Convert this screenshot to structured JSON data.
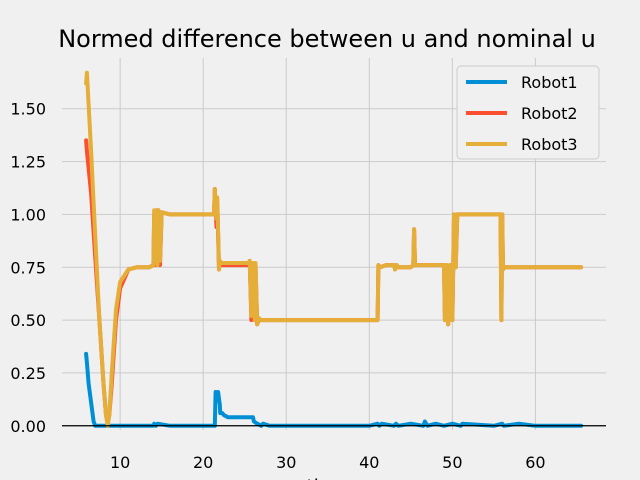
{
  "chart_data": {
    "type": "line",
    "title": "Normed difference between u and nominal u",
    "xlabel": "time",
    "ylabel": "",
    "xlim": [
      3.0,
      68.5
    ],
    "ylim": [
      -0.02,
      1.74
    ],
    "xticks": [
      10,
      20,
      30,
      40,
      50,
      60
    ],
    "yticks": [
      0.0,
      0.25,
      0.5,
      0.75,
      1.0,
      1.25,
      1.5
    ],
    "ytick_labels": [
      "0.00",
      "0.25",
      "0.50",
      "0.75",
      "1.00",
      "1.25",
      "1.50"
    ],
    "grid": true,
    "legend_position": "top-right",
    "series": [
      {
        "name": "Robot1",
        "color": "#008fd5",
        "x": [
          5.9,
          6.0,
          6.2,
          6.8,
          7.0,
          8.0,
          10.0,
          12.0,
          14.0,
          14.1,
          14.3,
          14.5,
          16.0,
          18.0,
          21.4,
          21.5,
          21.6,
          21.8,
          22.0,
          22.05,
          22.3,
          22.5,
          23.0,
          24.0,
          25.0,
          25.5,
          26.0,
          26.1,
          26.5,
          27.0,
          27.2,
          28.0,
          30.0,
          35.0,
          40.0,
          41.0,
          41.2,
          41.5,
          43.0,
          43.2,
          43.5,
          45.0,
          46.5,
          46.7,
          47.0,
          48.0,
          49.0,
          50.0,
          51.0,
          51.2,
          55.0,
          56.0,
          56.2,
          58.0,
          60.0,
          65.5
        ],
        "y": [
          0.34,
          0.3,
          0.2,
          0.02,
          0.0,
          0.0,
          0.0,
          0.0,
          0.0,
          0.01,
          0.0,
          0.01,
          0.0,
          0.0,
          0.0,
          0.16,
          0.14,
          0.16,
          0.1,
          0.06,
          0.06,
          0.05,
          0.04,
          0.04,
          0.04,
          0.04,
          0.04,
          0.02,
          0.01,
          0.0,
          0.01,
          0.0,
          0.0,
          0.0,
          0.0,
          0.01,
          0.0,
          0.01,
          0.0,
          0.01,
          0.0,
          0.01,
          0.0,
          0.02,
          0.0,
          0.01,
          0.0,
          0.01,
          0.0,
          0.01,
          0.0,
          0.01,
          0.0,
          0.01,
          0.0,
          0.0
        ]
      },
      {
        "name": "Robot2",
        "color": "#fc4f30",
        "x": [
          5.9,
          6.0,
          6.5,
          7.0,
          7.5,
          8.0,
          8.3,
          8.5,
          8.7,
          9.0,
          9.5,
          10.0,
          11.0,
          12.0,
          13.5,
          14.0,
          14.1,
          14.2,
          14.4,
          14.5,
          14.6,
          14.8,
          15.0,
          16.0,
          18.0,
          20.0,
          21.3,
          21.4,
          21.6,
          21.7,
          21.9,
          22.0,
          22.2,
          23.0,
          25.5,
          25.6,
          25.8,
          26.0,
          26.2,
          26.3,
          26.5,
          26.7,
          27.0,
          28.0,
          30.0,
          35.0,
          40.5,
          41.0,
          41.1,
          41.3,
          42.0,
          43.0,
          43.1,
          43.3,
          43.5,
          45.0,
          45.3,
          45.4,
          45.5,
          46.0,
          48.0,
          49.0,
          49.1,
          49.3,
          49.5,
          49.7,
          50.0,
          50.2,
          50.4,
          50.6,
          51.0,
          52.0,
          55.0,
          55.8,
          55.9,
          56.0,
          56.1,
          56.3,
          56.5,
          58.0,
          60.0,
          65.5
        ],
        "y": [
          1.35,
          1.3,
          1.1,
          0.8,
          0.5,
          0.2,
          0.05,
          0.02,
          0.05,
          0.2,
          0.5,
          0.65,
          0.74,
          0.75,
          0.75,
          0.76,
          1.0,
          0.76,
          1.02,
          0.78,
          1.02,
          0.76,
          1.01,
          1.0,
          1.0,
          1.0,
          1.0,
          1.12,
          0.94,
          1.05,
          0.74,
          0.78,
          0.76,
          0.76,
          0.76,
          0.78,
          0.5,
          0.76,
          0.5,
          0.76,
          0.48,
          0.5,
          0.5,
          0.5,
          0.5,
          0.5,
          0.5,
          0.5,
          0.76,
          0.75,
          0.76,
          0.76,
          0.74,
          0.76,
          0.75,
          0.75,
          0.76,
          0.93,
          0.76,
          0.76,
          0.76,
          0.76,
          0.5,
          0.76,
          0.48,
          0.76,
          0.5,
          1.0,
          0.75,
          1.0,
          1.0,
          1.0,
          1.0,
          1.0,
          0.5,
          1.0,
          0.74,
          0.75,
          0.75,
          0.75,
          0.75,
          0.75
        ]
      },
      {
        "name": "Robot3",
        "color": "#e5ae38",
        "x": [
          5.9,
          6.0,
          6.1,
          6.5,
          7.0,
          7.5,
          8.0,
          8.3,
          8.5,
          8.7,
          9.0,
          9.5,
          10.0,
          11.0,
          12.0,
          13.5,
          14.0,
          14.1,
          14.2,
          14.4,
          14.5,
          14.6,
          14.8,
          15.0,
          16.0,
          18.0,
          20.0,
          21.3,
          21.4,
          21.6,
          21.7,
          21.9,
          22.0,
          22.2,
          23.0,
          25.5,
          25.6,
          25.8,
          26.0,
          26.2,
          26.3,
          26.5,
          26.7,
          27.0,
          28.0,
          30.0,
          35.0,
          40.5,
          41.0,
          41.1,
          41.3,
          42.0,
          43.0,
          43.1,
          43.3,
          43.5,
          45.0,
          45.3,
          45.4,
          45.5,
          46.0,
          48.0,
          49.0,
          49.1,
          49.3,
          49.5,
          49.7,
          50.0,
          50.2,
          50.4,
          50.6,
          51.0,
          52.0,
          55.0,
          55.8,
          55.9,
          56.0,
          56.1,
          56.3,
          56.5,
          58.0,
          60.0,
          65.5
        ],
        "y": [
          1.62,
          1.67,
          1.6,
          1.3,
          0.9,
          0.5,
          0.2,
          0.05,
          0.0,
          0.05,
          0.25,
          0.55,
          0.68,
          0.74,
          0.75,
          0.75,
          0.76,
          1.02,
          0.78,
          1.02,
          0.76,
          1.02,
          0.78,
          1.01,
          1.0,
          1.0,
          1.0,
          1.0,
          1.12,
          0.98,
          1.08,
          0.74,
          0.78,
          0.77,
          0.77,
          0.77,
          0.78,
          0.52,
          0.77,
          0.5,
          0.77,
          0.48,
          0.51,
          0.5,
          0.5,
          0.5,
          0.5,
          0.5,
          0.5,
          0.76,
          0.75,
          0.76,
          0.76,
          0.74,
          0.76,
          0.75,
          0.75,
          0.76,
          0.93,
          0.76,
          0.76,
          0.76,
          0.76,
          0.5,
          0.76,
          0.48,
          0.76,
          0.5,
          1.0,
          0.75,
          1.0,
          1.0,
          1.0,
          1.0,
          1.0,
          0.5,
          1.0,
          0.74,
          0.75,
          0.75,
          0.75,
          0.75,
          0.75
        ]
      }
    ]
  }
}
